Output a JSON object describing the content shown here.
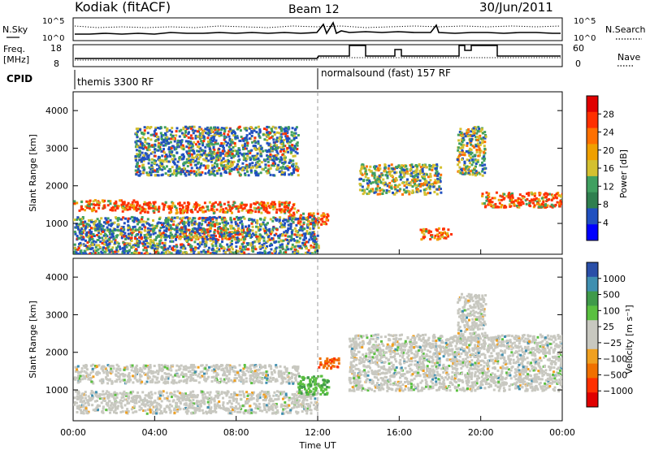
{
  "header": {
    "station": "Kodiak (fitACF)",
    "beam": "Beam 12",
    "date": "30/Jun/2011"
  },
  "ancillary": {
    "nsky_label": "N.Sky",
    "nsearch_label": "N.Search",
    "nsky_ticks": [
      "10^5",
      "10^0"
    ],
    "nsearch_ticks": [
      "10^5",
      "10^0"
    ],
    "freq_label": "Freq.",
    "freq_unit": "[MHz]",
    "freq_ticks": [
      "18",
      "8"
    ],
    "nave_label": "Nave",
    "nave_ticks": [
      "60",
      "0"
    ],
    "cpid_label": "CPID",
    "cpid_segments": [
      "themis 3300 RF",
      "normalsound (fast) 157 RF"
    ]
  },
  "chart_data": [
    {
      "type": "heatmap",
      "title": "",
      "ylabel": "Slant Range [km]",
      "xlabel": "Time UT",
      "y_ticks": [
        "4000",
        "3000",
        "2000",
        "1000"
      ],
      "ylim": [
        180,
        4500
      ],
      "x_ticks": [
        "00:00",
        "04:00",
        "08:00",
        "12:00",
        "16:00",
        "20:00",
        "00:00"
      ],
      "xlim_hours": [
        0,
        24
      ],
      "colorbar": {
        "label": "Power [dB]",
        "ticks": [
          "28",
          "24",
          "20",
          "16",
          "12",
          "8",
          "4"
        ],
        "range": [
          0,
          30
        ]
      },
      "scatter_regions": [
        {
          "t0": 0.0,
          "t1": 3.0,
          "r0": 1350,
          "r1": 1650,
          "level": "high"
        },
        {
          "t0": 3.0,
          "t1": 11.0,
          "r0": 1300,
          "r1": 1600,
          "level": "high"
        },
        {
          "t0": 5.0,
          "t1": 8.5,
          "r0": 600,
          "r1": 900,
          "level": "high"
        },
        {
          "t0": 10.5,
          "t1": 12.5,
          "r0": 1000,
          "r1": 1300,
          "level": "high"
        },
        {
          "t0": 17.0,
          "t1": 18.5,
          "r0": 600,
          "r1": 900,
          "level": "high"
        },
        {
          "t0": 20.0,
          "t1": 24.0,
          "r0": 1450,
          "r1": 1850,
          "level": "high"
        },
        {
          "t0": 18.8,
          "t1": 20.2,
          "r0": 2300,
          "r1": 3600,
          "level": "medium"
        },
        {
          "t0": 14.0,
          "t1": 18.0,
          "r0": 1800,
          "r1": 2600,
          "level": "medium"
        },
        {
          "t0": 0.0,
          "t1": 12.0,
          "r0": 200,
          "r1": 1200,
          "level": "low"
        },
        {
          "t0": 3.0,
          "t1": 11.0,
          "r0": 2300,
          "r1": 3600,
          "level": "low"
        }
      ]
    },
    {
      "type": "heatmap",
      "title": "",
      "ylabel": "Slant Range [km]",
      "xlabel": "Time UT",
      "y_ticks": [
        "4000",
        "3000",
        "2000",
        "1000"
      ],
      "ylim": [
        180,
        4500
      ],
      "x_ticks": [
        "00:00",
        "04:00",
        "08:00",
        "12:00",
        "16:00",
        "20:00",
        "00:00"
      ],
      "xlim_hours": [
        0,
        24
      ],
      "colorbar": {
        "label": "Velocity [m s⁻¹]",
        "ticks": [
          "1000",
          "500",
          "100",
          "25",
          "−25",
          "−100",
          "−500",
          "−1000"
        ],
        "range": [
          -1000,
          1000
        ]
      },
      "scatter_regions": [
        {
          "t0": 0.0,
          "t1": 11.0,
          "r0": 1200,
          "r1": 1700,
          "level": "ground"
        },
        {
          "t0": 0.0,
          "t1": 12.0,
          "r0": 400,
          "r1": 1000,
          "level": "ground"
        },
        {
          "t0": 11.0,
          "t1": 12.5,
          "r0": 900,
          "r1": 1400,
          "level": "positive"
        },
        {
          "t0": 12.0,
          "t1": 13.0,
          "r0": 1600,
          "r1": 1900,
          "level": "negative"
        },
        {
          "t0": 13.5,
          "t1": 24.0,
          "r0": 1000,
          "r1": 2500,
          "level": "ground"
        },
        {
          "t0": 18.8,
          "t1": 20.2,
          "r0": 2300,
          "r1": 3600,
          "level": "ground"
        }
      ]
    }
  ]
}
